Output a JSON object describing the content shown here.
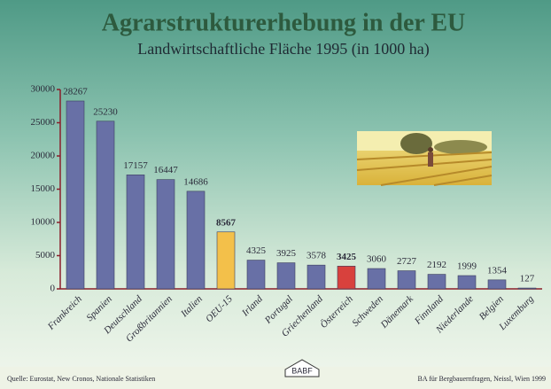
{
  "chart_data": {
    "type": "bar",
    "title": "Agrarstrukturerhebung in der EU",
    "subtitle": "Landwirtschaftliche Fläche 1995 (in 1000 ha)",
    "categories": [
      "Frankreich",
      "Spanien",
      "Deutschland",
      "Großbritannien",
      "Italien",
      "OEU-15",
      "Irland",
      "Portugal",
      "Griechenland",
      "Österreich",
      "Schweden",
      "Dänemark",
      "Finnland",
      "Niederlande",
      "Belgien",
      "Luxemburg"
    ],
    "values": [
      28267,
      25230,
      17157,
      16447,
      14686,
      8567,
      4325,
      3925,
      3578,
      3425,
      3060,
      2727,
      2192,
      1999,
      1354,
      127
    ],
    "colors": [
      "#6870a6",
      "#6870a6",
      "#6870a6",
      "#6870a6",
      "#6870a6",
      "#f3c04a",
      "#6870a6",
      "#6870a6",
      "#6870a6",
      "#d8413d",
      "#6870a6",
      "#6870a6",
      "#6870a6",
      "#6870a6",
      "#6870a6",
      "#6870a6"
    ],
    "ylim": [
      0,
      30000
    ],
    "yticks": [
      0,
      5000,
      10000,
      15000,
      20000,
      25000,
      30000
    ],
    "source": "Quelle: Eurostat, New Cronos, Nationale Statistiken",
    "credit": "BA für Bergbauernfragen, Neissl, Wien 1999",
    "logo": "BABF"
  }
}
